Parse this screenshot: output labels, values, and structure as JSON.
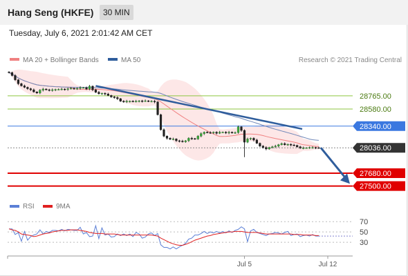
{
  "header": {
    "instrument": "Hang Seng (HKFE)",
    "timeframe": "30 MIN",
    "datetime": "Tuesday, July 6, 2021 2:01:42 AM CET",
    "copyright": "Research © 2021 Trading Central"
  },
  "legend": {
    "bollinger_label": "MA 20 + Bollinger Bands",
    "ma50_label": "MA 50",
    "rsi_label": "RSI",
    "rsi_ma_label": "9MA"
  },
  "colors": {
    "bollinger": "#f08080",
    "ma50": "#2f5d9c",
    "resistance_green": "#8cc63f",
    "pivot": "#3a78e0",
    "support": "#e00000",
    "last_price": "#333333",
    "rsi": "#5b7fd6",
    "rsi_ma": "#e02020"
  },
  "chart_data": [
    {
      "type": "candlestick",
      "instrument": "Hang Seng (HKFE)",
      "interval": "30 MIN",
      "ylim": [
        27380,
        29180
      ],
      "x_ticks": [
        "Jul 5",
        "Jul 12"
      ],
      "levels": [
        {
          "value": 28765,
          "label": "28765.00",
          "kind": "resistance"
        },
        {
          "value": 28580,
          "label": "28580.00",
          "kind": "resistance"
        },
        {
          "value": 28340,
          "label": "28340.00",
          "kind": "pivot"
        },
        {
          "value": 28036,
          "label": "28036.00",
          "kind": "last"
        },
        {
          "value": 27680,
          "label": "27680.00",
          "kind": "support"
        },
        {
          "value": 27500,
          "label": "27500.00",
          "kind": "support"
        }
      ],
      "close": [
        29090,
        29050,
        28990,
        28935,
        28905,
        28885,
        28865,
        28850,
        28820,
        28805,
        28845,
        28860,
        28850,
        28840,
        28850,
        28855,
        28855,
        28860,
        28855,
        28865,
        28870,
        28865,
        28870,
        28880,
        28880,
        28860,
        28900,
        28850,
        28815,
        28795,
        28800,
        28790,
        28770,
        28750,
        28740,
        28725,
        28690,
        28680,
        28690,
        28690,
        28685,
        28690,
        28695,
        28690,
        28695,
        28690,
        28690,
        28680,
        28500,
        28290,
        28200,
        28170,
        28155,
        28160,
        28135,
        28130,
        28120,
        28135,
        28170,
        28165,
        28160,
        28200,
        28235,
        28255,
        28250,
        28245,
        28255,
        28240,
        28255,
        28255,
        28245,
        28255,
        28245,
        28250,
        28330,
        28280,
        28115,
        28160,
        28170,
        28145,
        28100,
        28060,
        28040,
        28020,
        28040,
        28050,
        28060,
        28080,
        28095,
        28080,
        28085,
        28075,
        28070,
        28050,
        28035,
        28035,
        28035,
        28040,
        28040,
        28037,
        28036
      ]
    },
    {
      "type": "line",
      "title": "RSI",
      "ylim": [
        0,
        100
      ],
      "y_ticks": [
        70,
        50,
        30
      ],
      "x_ticks": [
        "Jul 5",
        "Jul 12"
      ],
      "series": [
        {
          "name": "RSI",
          "values": [
            56,
            56,
            45,
            49,
            32,
            51,
            34,
            41,
            44,
            46,
            54,
            46,
            51,
            49,
            53,
            53,
            52,
            55,
            52,
            55,
            54,
            53,
            53,
            59,
            46,
            49,
            41,
            42,
            62,
            37,
            58,
            44,
            46,
            40,
            41,
            46,
            43,
            46,
            43,
            46,
            41,
            49,
            46,
            38,
            40,
            46,
            48,
            43,
            47,
            25,
            20,
            20,
            17,
            21,
            17,
            21,
            24,
            28,
            36,
            38,
            44,
            44,
            47,
            51,
            47,
            50,
            48,
            51,
            48,
            51,
            48,
            52,
            49,
            53,
            55,
            60,
            56,
            31,
            52,
            55,
            49,
            47,
            45,
            43,
            46,
            47,
            49,
            48,
            46,
            49,
            51,
            43,
            45,
            46,
            41,
            43,
            44,
            42,
            45,
            42,
            42
          ]
        },
        {
          "name": "9MA",
          "values": [
            56,
            54,
            53,
            50,
            46,
            45,
            44,
            43,
            41,
            42,
            44,
            46,
            47,
            48,
            50,
            51,
            52,
            53,
            53,
            53,
            54,
            54,
            54,
            53,
            52,
            51,
            49,
            48,
            47,
            47,
            47,
            46,
            46,
            46,
            46,
            45,
            44,
            44,
            44,
            44,
            44,
            44,
            44,
            44,
            44,
            44,
            44,
            43,
            42,
            38,
            35,
            32,
            29,
            27,
            25,
            24,
            24,
            26,
            28,
            31,
            34,
            36,
            38,
            40,
            42,
            43,
            45,
            46,
            47,
            48,
            49,
            50,
            50,
            51,
            51,
            51,
            50,
            49,
            49,
            49,
            49,
            48,
            47,
            46,
            46,
            46,
            46,
            46,
            46,
            46,
            46,
            46,
            45,
            45,
            45,
            44,
            44,
            44,
            44,
            43,
            43
          ]
        }
      ]
    }
  ]
}
